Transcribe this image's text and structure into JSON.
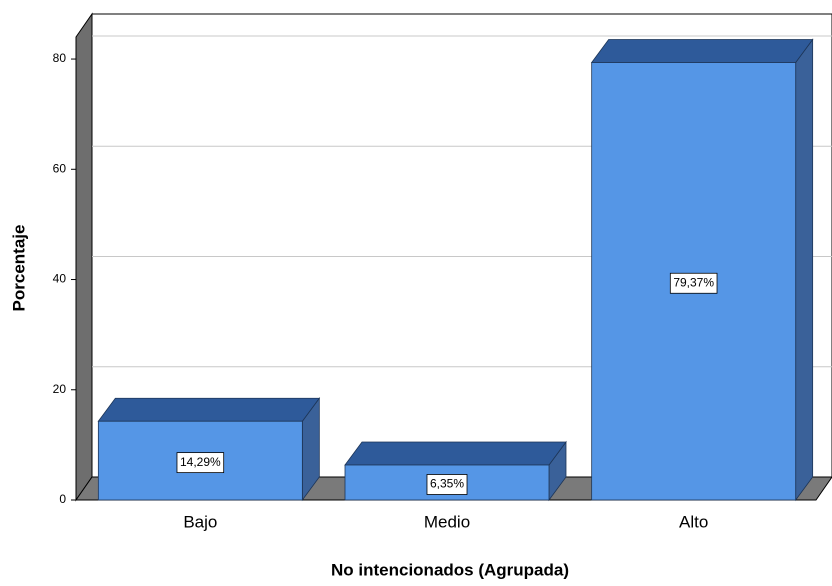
{
  "chart_data": {
    "type": "bar3d",
    "x_label": "No intencionados (Agrupada)",
    "y_label": "Porcentaje",
    "categories": [
      "Bajo",
      "Medio",
      "Alto"
    ],
    "values": [
      14.29,
      6.35,
      79.37
    ],
    "value_labels": [
      "14,29%",
      "6,35%",
      "79,37%"
    ],
    "color": "#5596e6",
    "ylim": [
      0,
      84
    ],
    "yticks": [
      0,
      20,
      40,
      60,
      80
    ],
    "grid": true
  }
}
